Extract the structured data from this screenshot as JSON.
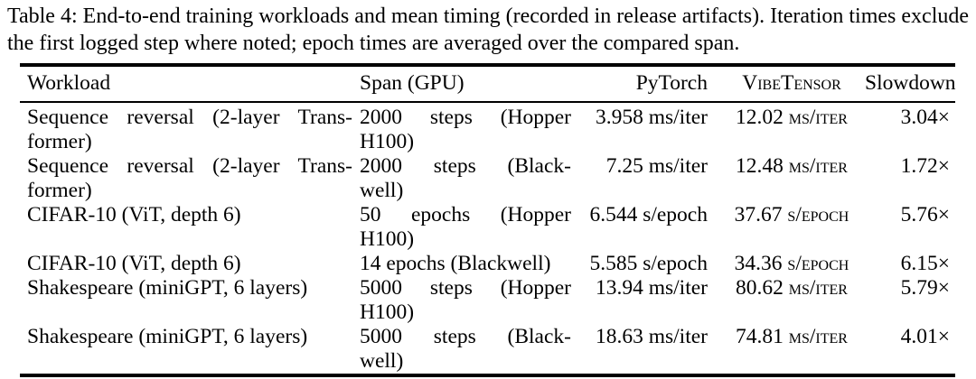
{
  "caption": {
    "label": "Table 4:",
    "text": "End-to-end training workloads and mean timing (recorded in release artifacts). Iteration times exclude the first logged step where noted; epoch times are averaged over the compared span."
  },
  "table": {
    "columns": [
      {
        "key": "workload",
        "label": "Workload",
        "align": "left"
      },
      {
        "key": "span",
        "label": "Span (GPU)",
        "align": "left"
      },
      {
        "key": "pytorch",
        "label": "PyTorch",
        "align": "right"
      },
      {
        "key": "vibetensor",
        "label": "VibeTensor",
        "align": "center",
        "smallcaps": true
      },
      {
        "key": "slowdown",
        "label": "Slowdown",
        "align": "right"
      }
    ],
    "rows": [
      {
        "workload": "Sequence reversal (2-layer Trans-\nformer)",
        "span": "2000 steps (Hopper\nH100)",
        "pytorch": "3.958 ms/iter",
        "vibetensor": "12.02 ms/iter",
        "slowdown": "3.04×"
      },
      {
        "workload": "Sequence reversal (2-layer Trans-\nformer)",
        "span": "2000 steps (Black-\nwell)",
        "pytorch": "7.25 ms/iter",
        "vibetensor": "12.48 ms/iter",
        "slowdown": "1.72×"
      },
      {
        "workload": "CIFAR-10 (ViT, depth 6)",
        "span": "50 epochs (Hopper\nH100)",
        "pytorch": "6.544 s/epoch",
        "vibetensor": "37.67 s/epoch",
        "slowdown": "5.76×"
      },
      {
        "workload": "CIFAR-10 (ViT, depth 6)",
        "span": "14 epochs (Blackwell)",
        "pytorch": "5.585 s/epoch",
        "vibetensor": "34.36 s/epoch",
        "slowdown": "6.15×"
      },
      {
        "workload": "Shakespeare (miniGPT, 6 layers)",
        "span": "5000 steps (Hopper\nH100)",
        "pytorch": "13.94 ms/iter",
        "vibetensor": "80.62 ms/iter",
        "slowdown": "5.79×"
      },
      {
        "workload": "Shakespeare (miniGPT, 6 layers)",
        "span": "5000 steps (Black-\nwell)",
        "pytorch": "18.63 ms/iter",
        "vibetensor": "74.81 ms/iter",
        "slowdown": "4.01×"
      }
    ]
  }
}
